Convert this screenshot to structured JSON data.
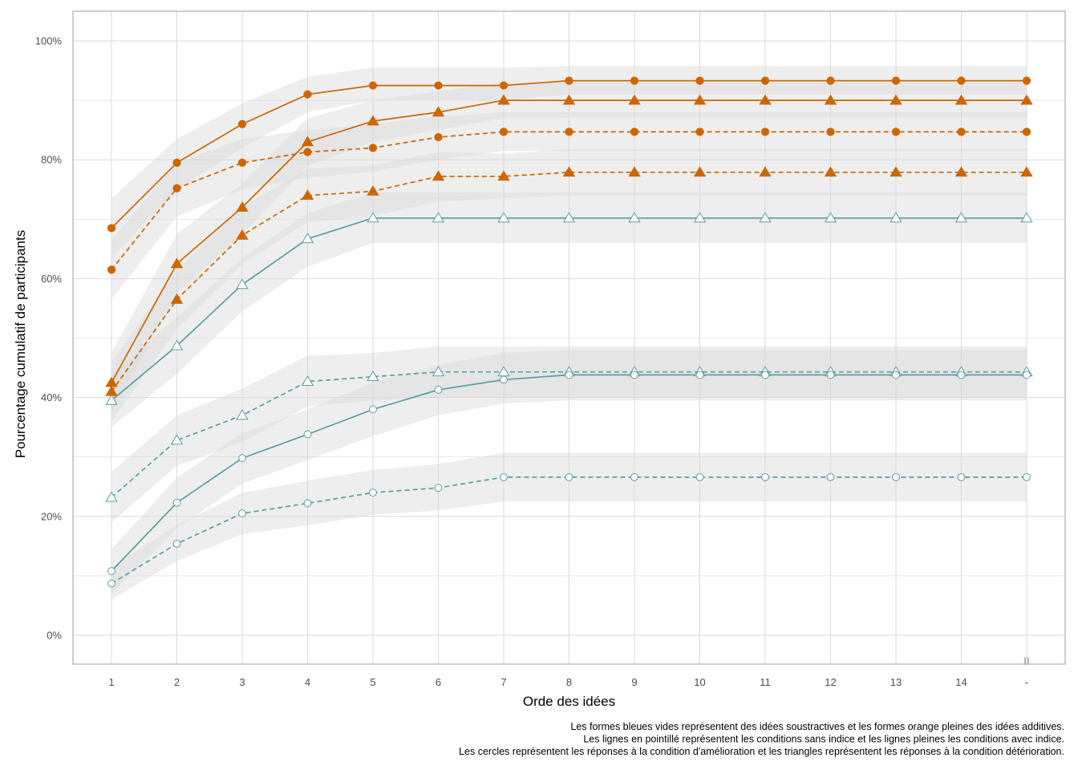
{
  "chart_data": {
    "type": "line",
    "title": "",
    "xlabel": "Orde des idées",
    "ylabel": "Pourcentage cumulatif de participants",
    "categories": [
      "1",
      "2",
      "3",
      "4",
      "5",
      "6",
      "7",
      "8",
      "9",
      "10",
      "11",
      "12",
      "13",
      "14",
      "-"
    ],
    "y_ticks": [
      "0%",
      "20%",
      "40%",
      "60%",
      "80%",
      "100%"
    ],
    "ylim": [
      -5,
      105
    ],
    "grid": true,
    "legend": "none",
    "caption": [
      "Les formes bleues vides représentent des idées soustractives et les formes orange pleines des idées additives.",
      "Les lignes en pointillé représentent les conditions sans indice et les lignes pleines les conditions avec indice.",
      "Les cercles représentent les réponses à la condition d'amélioration et les triangles représentent les réponses à la condition détérioration."
    ],
    "corner_mark": "II",
    "colors": {
      "orange": "#cc6600",
      "teal": "#5c9ea0",
      "ribbon": "#d9d9d9",
      "grid": "#d9d9d9",
      "frame": "#b3b3b3"
    },
    "series": [
      {
        "color": "orange",
        "dash": "solid",
        "shape": "circle",
        "filled": true,
        "values": [
          68.5,
          79.5,
          86,
          91,
          92.5,
          92.5,
          92.5,
          93.3,
          93.3,
          93.3,
          93.3,
          93.3,
          93.3,
          93.3,
          93.3
        ],
        "lower": [
          63.5,
          75,
          82,
          88,
          90,
          90,
          90,
          91,
          91,
          91,
          91,
          91,
          91,
          91,
          91
        ],
        "upper": [
          73.5,
          83.5,
          89.5,
          94,
          95.5,
          95.5,
          95.5,
          95.8,
          95.8,
          95.8,
          95.8,
          95.8,
          95.8,
          95.8,
          95.8
        ]
      },
      {
        "color": "orange",
        "dash": "solid",
        "shape": "triangle",
        "filled": true,
        "values": [
          42.5,
          62.5,
          72,
          83,
          86.5,
          88,
          90,
          90,
          90,
          90,
          90,
          90,
          90,
          90,
          90
        ],
        "lower": [
          37.5,
          57.5,
          67.5,
          79,
          83,
          85,
          87,
          87,
          87,
          87,
          87,
          87,
          87,
          87,
          87
        ],
        "upper": [
          47.5,
          67.5,
          76,
          87,
          90,
          91.5,
          93,
          93,
          93,
          93,
          93,
          93,
          93,
          93,
          93
        ]
      },
      {
        "color": "orange",
        "dash": "dashed",
        "shape": "circle",
        "filled": true,
        "values": [
          61.5,
          75.2,
          79.5,
          81.3,
          82,
          83.8,
          84.7,
          84.7,
          84.7,
          84.7,
          84.7,
          84.7,
          84.7,
          84.7,
          84.7
        ],
        "lower": [
          56.5,
          70.5,
          75,
          77,
          78,
          80,
          81.5,
          81.5,
          81.5,
          81.5,
          81.5,
          81.5,
          81.5,
          81.5,
          81.5
        ],
        "upper": [
          66.5,
          79.5,
          83.5,
          85,
          86,
          87.3,
          88,
          88,
          88,
          88,
          88,
          88,
          88,
          88,
          88
        ]
      },
      {
        "color": "orange",
        "dash": "dashed",
        "shape": "triangle",
        "filled": true,
        "values": [
          41,
          56.5,
          67.3,
          74,
          74.7,
          77.2,
          77.2,
          77.9,
          77.9,
          77.9,
          77.9,
          77.9,
          77.9,
          77.9,
          77.9
        ],
        "lower": [
          36,
          51.5,
          62.5,
          69.5,
          70.5,
          73,
          73.5,
          74,
          74,
          74,
          74,
          74,
          74,
          74,
          74
        ],
        "upper": [
          46,
          61.5,
          72,
          78.5,
          79,
          81.3,
          81,
          81.8,
          81.8,
          81.8,
          81.8,
          81.8,
          81.8,
          81.8,
          81.8
        ]
      },
      {
        "color": "teal",
        "dash": "solid",
        "shape": "triangle",
        "filled": false,
        "values": [
          39.5,
          48.7,
          59,
          66.7,
          70.2,
          70.2,
          70.2,
          70.2,
          70.2,
          70.2,
          70.2,
          70.2,
          70.2,
          70.2,
          70.2
        ],
        "lower": [
          35,
          44,
          54.5,
          62,
          66,
          66,
          66,
          66,
          66,
          66,
          66,
          66,
          66,
          66,
          66
        ],
        "upper": [
          44,
          53.5,
          63.5,
          71,
          74.5,
          74.5,
          74.5,
          74.5,
          74.5,
          74.5,
          74.5,
          74.5,
          74.5,
          74.5,
          74.5
        ]
      },
      {
        "color": "teal",
        "dash": "dashed",
        "shape": "triangle",
        "filled": false,
        "values": [
          23.2,
          32.8,
          37,
          42.7,
          43.5,
          44.3,
          44.3,
          44.3,
          44.3,
          44.3,
          44.3,
          44.3,
          44.3,
          44.3,
          44.3
        ],
        "lower": [
          19,
          28.5,
          32.5,
          38.5,
          39.5,
          40,
          40,
          40,
          40,
          40,
          40,
          40,
          40,
          40,
          40
        ],
        "upper": [
          27.5,
          37,
          41.5,
          47,
          47.5,
          48.6,
          48.6,
          48.6,
          48.6,
          48.6,
          48.6,
          48.6,
          48.6,
          48.6,
          48.6
        ]
      },
      {
        "color": "teal",
        "dash": "solid",
        "shape": "circle",
        "filled": false,
        "values": [
          10.8,
          22.3,
          29.8,
          33.8,
          38,
          41.3,
          43,
          43.8,
          43.8,
          43.8,
          43.8,
          43.8,
          43.8,
          43.8,
          43.8
        ],
        "lower": [
          7,
          18,
          25.5,
          29.5,
          33.5,
          37,
          39,
          39.5,
          39.5,
          39.5,
          39.5,
          39.5,
          39.5,
          39.5,
          39.5
        ],
        "upper": [
          14.5,
          26.5,
          34,
          38,
          42.5,
          45.5,
          47.5,
          48,
          48,
          48,
          48,
          48,
          48,
          48,
          48
        ]
      },
      {
        "color": "teal",
        "dash": "dashed",
        "shape": "circle",
        "filled": false,
        "values": [
          8.7,
          15.4,
          20.5,
          22.2,
          24,
          24.8,
          26.6,
          26.6,
          26.6,
          26.6,
          26.6,
          26.6,
          26.6,
          26.6,
          26.6
        ],
        "lower": [
          6,
          12.5,
          17,
          18.5,
          20.3,
          21,
          22.5,
          22.5,
          22.5,
          22.5,
          22.5,
          22.5,
          22.5,
          22.5,
          22.5
        ],
        "upper": [
          11.5,
          18.5,
          24,
          26,
          27.8,
          28.8,
          30.7,
          30.7,
          30.7,
          30.7,
          30.7,
          30.7,
          30.7,
          30.7,
          30.7
        ]
      }
    ]
  }
}
